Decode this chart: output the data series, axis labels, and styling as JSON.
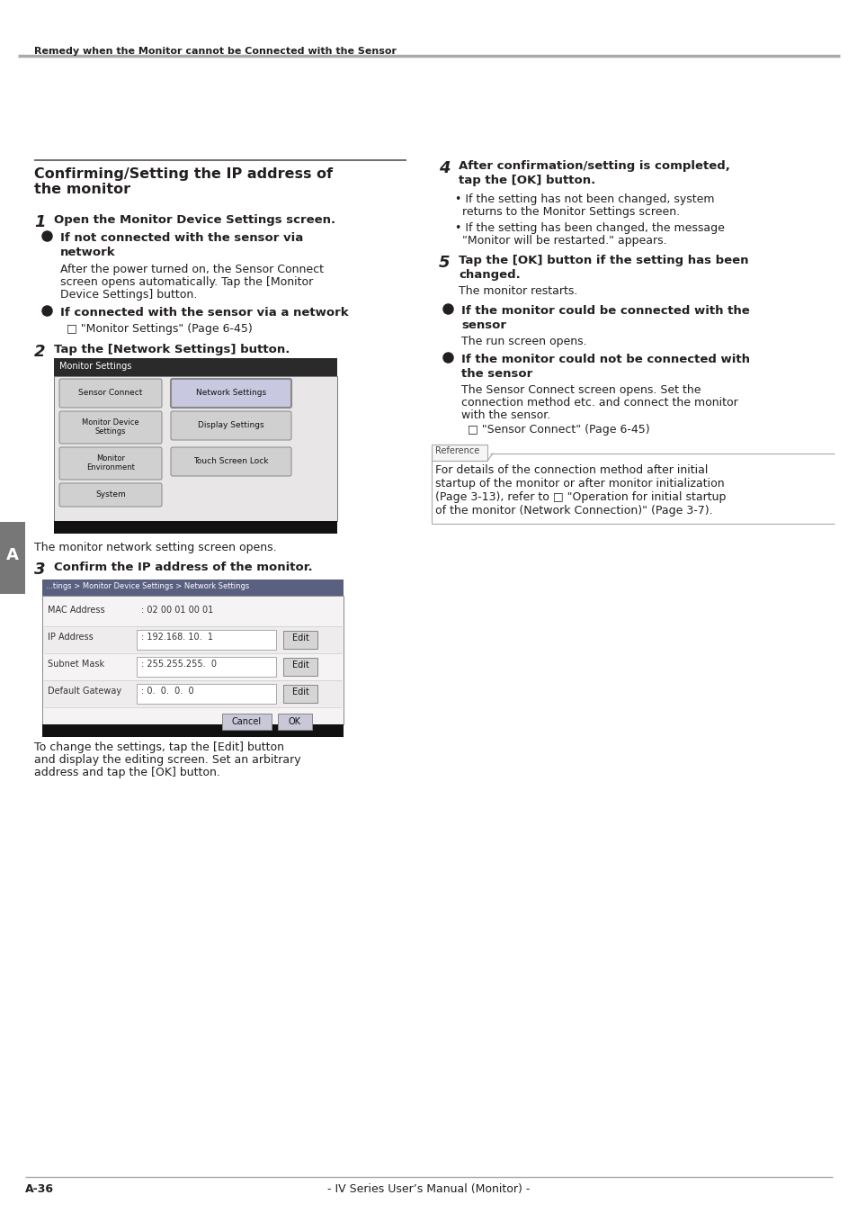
{
  "bg_color": "#ffffff",
  "text_color": "#231f20",
  "header_text": "Remedy when the Monitor cannot be Connected with the Sensor",
  "footer_text": "- IV Series User’s Manual (Monitor) -",
  "footer_page": "A-36",
  "sidebar_label": "A",
  "sidebar_color": "#777777"
}
